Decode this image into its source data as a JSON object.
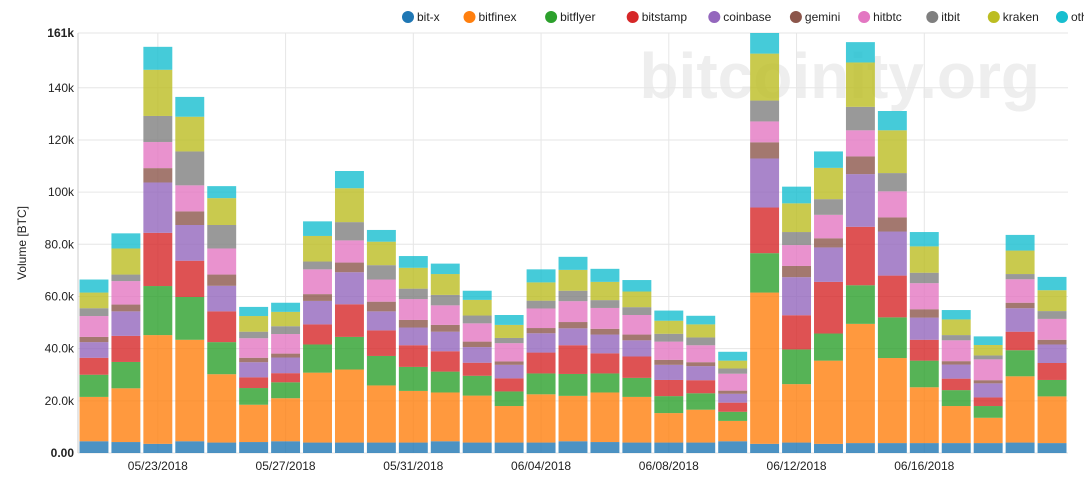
{
  "watermark": "bitcoinity.org",
  "colors": {
    "bit-x": "#1f77b4",
    "bitfinex": "#ff7f0e",
    "bitflyer": "#2ca02c",
    "bitstamp": "#d62728",
    "coinbase": "#9467bd",
    "gemini": "#8c564b",
    "hitbtc": "#e377c2",
    "itbit": "#7f7f7f",
    "kraken": "#bcbd22",
    "others": "#17becf"
  },
  "chart_data": {
    "type": "bar",
    "stacked": true,
    "ylabel": "Volume [BTC]",
    "ylim": [
      0,
      161000
    ],
    "y_ticks": [
      "0.00",
      "20.0k",
      "40.0k",
      "60.0k",
      "80.0k",
      "100k",
      "120k",
      "140k",
      "161k"
    ],
    "y_tick_values": [
      0,
      20000,
      40000,
      60000,
      80000,
      100000,
      120000,
      140000,
      161000
    ],
    "x_tick_labels": [
      "05/23/2018",
      "05/27/2018",
      "05/31/2018",
      "06/04/2018",
      "06/08/2018",
      "06/12/2018",
      "06/16/2018"
    ],
    "x_tick_indices": [
      2.5,
      6.5,
      10.5,
      14.5,
      18.5,
      22.5,
      26.5
    ],
    "grid": true,
    "legend_position": "top-right",
    "categories": [
      "2018-05-21",
      "2018-05-22",
      "2018-05-23",
      "2018-05-24",
      "2018-05-25",
      "2018-05-26",
      "2018-05-27",
      "2018-05-28",
      "2018-05-29",
      "2018-05-30",
      "2018-05-31",
      "2018-06-01",
      "2018-06-02",
      "2018-06-03",
      "2018-06-04",
      "2018-06-05",
      "2018-06-06",
      "2018-06-07",
      "2018-06-08",
      "2018-06-09",
      "2018-06-10",
      "2018-06-11",
      "2018-06-12",
      "2018-06-13",
      "2018-06-14",
      "2018-06-15",
      "2018-06-16",
      "2018-06-17",
      "2018-06-18",
      "2018-06-19",
      "2018-06-20"
    ],
    "series": [
      {
        "name": "bit-x",
        "values": [
          4500,
          4200,
          3500,
          4500,
          4000,
          4200,
          4500,
          4000,
          4000,
          4000,
          4000,
          4500,
          4000,
          4000,
          4000,
          4500,
          4200,
          4000,
          4000,
          4000,
          4500,
          3500,
          4000,
          3500,
          3800,
          3800,
          3800,
          3800,
          3800,
          4000,
          3800
        ]
      },
      {
        "name": "bitfinex",
        "values": [
          17000,
          20600,
          41700,
          38900,
          26200,
          14300,
          16500,
          26800,
          28000,
          21900,
          19800,
          18700,
          18000,
          14000,
          18500,
          17400,
          19000,
          17500,
          11300,
          12600,
          7800,
          58000,
          22400,
          31900,
          45700,
          32600,
          21400,
          14200,
          9700,
          25400,
          17900
        ]
      },
      {
        "name": "bitflyer",
        "values": [
          8500,
          10100,
          18800,
          16400,
          12300,
          6400,
          6100,
          10800,
          12500,
          11300,
          9200,
          8000,
          7600,
          5600,
          8000,
          8400,
          7300,
          7300,
          6500,
          6300,
          3500,
          15100,
          13300,
          10400,
          14800,
          15600,
          10200,
          6100,
          4500,
          10000,
          6300
        ]
      },
      {
        "name": "bitstamp",
        "values": [
          6500,
          10000,
          20400,
          13900,
          11800,
          4100,
          3500,
          7700,
          12500,
          9800,
          8300,
          7800,
          5000,
          5000,
          8000,
          11000,
          7700,
          8200,
          6200,
          5000,
          3500,
          17500,
          13100,
          19800,
          22400,
          16000,
          8000,
          4400,
          3300,
          7100,
          6500
        ]
      },
      {
        "name": "coinbase",
        "values": [
          6000,
          9400,
          19300,
          13700,
          9800,
          5800,
          6000,
          9000,
          12300,
          7300,
          6800,
          7500,
          6000,
          5200,
          7400,
          6500,
          7200,
          6200,
          5800,
          5400,
          3400,
          18800,
          14600,
          13200,
          20200,
          16900,
          8500,
          5400,
          5400,
          9000,
          7100
        ]
      },
      {
        "name": "gemini",
        "values": [
          2000,
          2600,
          5500,
          5200,
          4300,
          1700,
          1500,
          2600,
          3700,
          3700,
          2900,
          2600,
          2100,
          1300,
          2000,
          2400,
          2200,
          2200,
          1900,
          1500,
          1200,
          6200,
          4300,
          3500,
          6800,
          5400,
          3200,
          1300,
          1200,
          2100,
          1800
        ]
      },
      {
        "name": "hitbtc",
        "values": [
          8000,
          9000,
          10000,
          10000,
          10000,
          7500,
          7500,
          9500,
          8500,
          8500,
          8000,
          7500,
          7000,
          7000,
          7500,
          8000,
          8000,
          7500,
          7000,
          6500,
          6500,
          8000,
          8000,
          9000,
          10000,
          10000,
          10000,
          8000,
          8000,
          9000,
          8000
        ]
      },
      {
        "name": "itbit",
        "values": [
          3000,
          2500,
          10000,
          13000,
          9000,
          2500,
          3000,
          3000,
          7000,
          5500,
          4000,
          4000,
          3000,
          2000,
          3000,
          4000,
          3000,
          3000,
          3000,
          3000,
          2000,
          8000,
          5000,
          6000,
          9000,
          7000,
          4000,
          2000,
          1500,
          2000,
          3000
        ]
      },
      {
        "name": "kraken",
        "values": [
          6000,
          10000,
          17700,
          13300,
          10300,
          6000,
          5500,
          9800,
          13000,
          9000,
          8000,
          8000,
          6000,
          5000,
          7000,
          8000,
          7000,
          6000,
          5000,
          5000,
          3000,
          18000,
          11000,
          12000,
          17000,
          16400,
          10100,
          6000,
          4000,
          9000,
          8000
        ]
      },
      {
        "name": "others",
        "values": [
          5000,
          5800,
          8800,
          7600,
          4600,
          3500,
          3500,
          5600,
          6600,
          4500,
          4500,
          4000,
          3500,
          3800,
          5000,
          5000,
          5000,
          4400,
          3900,
          3300,
          3400,
          8300,
          6400,
          6300,
          7800,
          7400,
          5500,
          3600,
          3300,
          6000,
          5100
        ]
      }
    ]
  }
}
